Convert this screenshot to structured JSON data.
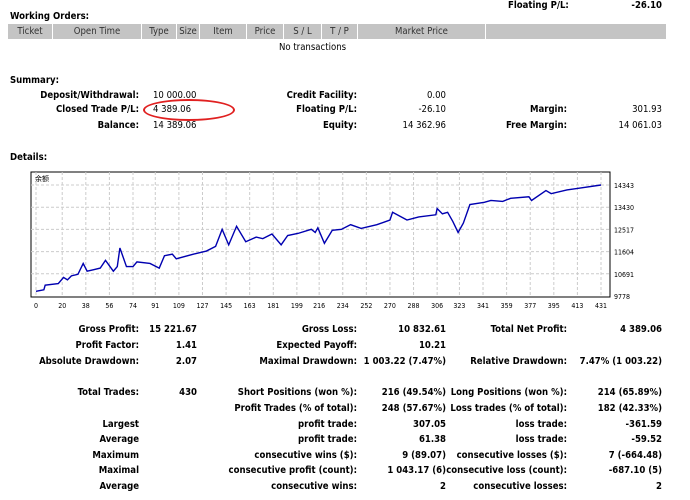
{
  "top_partial": {
    "label": "Floating P/L:",
    "value": "-26.10"
  },
  "working_orders": {
    "title": "Working Orders:",
    "columns": [
      "Ticket",
      "Open Time",
      "Type",
      "Size",
      "Item",
      "Price",
      "S / L",
      "T / P",
      "Market Price",
      ""
    ],
    "empty_text": "No transactions"
  },
  "summary": {
    "title": "Summary:",
    "rows": [
      [
        {
          "l": "Deposit/Withdrawal:",
          "v": "10 000.00"
        },
        {
          "l": "Credit Facility:",
          "v": "0.00"
        },
        {
          "l": "",
          "v": ""
        }
      ],
      [
        {
          "l": "Closed Trade P/L:",
          "v": "4 389.06"
        },
        {
          "l": "Floating P/L:",
          "v": "-26.10"
        },
        {
          "l": "Margin:",
          "v": "301.93"
        }
      ],
      [
        {
          "l": "Balance:",
          "v": "14 389.06"
        },
        {
          "l": "Equity:",
          "v": "14 362.96"
        },
        {
          "l": "Free Margin:",
          "v": "14 061.03"
        }
      ]
    ],
    "highlight_color": "#e02020"
  },
  "details": {
    "title": "Details:"
  },
  "chart_data": {
    "type": "line",
    "legend_label": "余额",
    "line_color": "#0000b0",
    "grid": true,
    "x_ticks": [
      0,
      20,
      38,
      56,
      74,
      91,
      109,
      127,
      145,
      163,
      181,
      199,
      216,
      234,
      252,
      270,
      288,
      306,
      323,
      341,
      359,
      377,
      395,
      413,
      431
    ],
    "y_ticks": [
      9778,
      10691,
      11604,
      12517,
      13430,
      14343
    ],
    "ylim": [
      9778,
      14343
    ],
    "xlim": [
      0,
      431
    ],
    "x": [
      0,
      6,
      7,
      17,
      21,
      24,
      27,
      32,
      36,
      39,
      44,
      49,
      53,
      59,
      62,
      64,
      69,
      74,
      77,
      87,
      94,
      98,
      104,
      107,
      120,
      130,
      137,
      142,
      147,
      153,
      160,
      168,
      173,
      180,
      187,
      192,
      200,
      210,
      213,
      215,
      220,
      226,
      233,
      240,
      248,
      260,
      270,
      272,
      283,
      292,
      305,
      306,
      310,
      314,
      318,
      322,
      326,
      331,
      342,
      347,
      356,
      362,
      376,
      378,
      389,
      393,
      405,
      415,
      431
    ],
    "y": [
      9969,
      10033,
      10224,
      10288,
      10543,
      10441,
      10607,
      10670,
      11117,
      10798,
      10862,
      10925,
      11244,
      10798,
      10989,
      11754,
      10989,
      10989,
      11180,
      11117,
      10925,
      11436,
      11499,
      11308,
      11499,
      11627,
      11818,
      12520,
      11882,
      12647,
      12009,
      12201,
      12137,
      12328,
      11882,
      12265,
      12354,
      12520,
      12392,
      12583,
      11946,
      12481,
      12520,
      12711,
      12558,
      12711,
      12902,
      13221,
      12902,
      13030,
      13119,
      13374,
      13157,
      13221,
      12839,
      12392,
      12775,
      13540,
      13630,
      13706,
      13668,
      13795,
      13859,
      13706,
      14114,
      13987,
      14140,
      14216,
      14343
    ]
  },
  "stats": {
    "rows": [
      [
        {
          "l": "Gross Profit:",
          "v": "15 221.67"
        },
        {
          "l": "Gross Loss:",
          "v": "10 832.61"
        },
        {
          "l": "Total Net Profit:",
          "v": "4 389.06"
        }
      ],
      [
        {
          "l": "Profit Factor:",
          "v": "1.41"
        },
        {
          "l": "Expected Payoff:",
          "v": "10.21"
        },
        {
          "l": "",
          "v": ""
        }
      ],
      [
        {
          "l": "Absolute Drawdown:",
          "v": "2.07"
        },
        {
          "l": "Maximal Drawdown:",
          "v": "1 003.22 (7.47%)"
        },
        {
          "l": "Relative Drawdown:",
          "v": "7.47% (1 003.22)"
        }
      ],
      [
        {
          "l": "Total Trades:",
          "v": "430"
        },
        {
          "l": "Short Positions (won %):",
          "v": "216 (49.54%)"
        },
        {
          "l": "Long Positions (won %):",
          "v": "214 (65.89%)"
        }
      ],
      [
        {
          "l": "",
          "v": ""
        },
        {
          "l": "Profit Trades (% of total):",
          "v": "248 (57.67%)"
        },
        {
          "l": "Loss trades (% of total):",
          "v": "182 (42.33%)"
        }
      ],
      [
        {
          "l": "Largest",
          "v": ""
        },
        {
          "l": "profit trade:",
          "v": "307.05"
        },
        {
          "l": "loss trade:",
          "v": "-361.59"
        }
      ],
      [
        {
          "l": "Average",
          "v": ""
        },
        {
          "l": "profit trade:",
          "v": "61.38"
        },
        {
          "l": "loss trade:",
          "v": "-59.52"
        }
      ],
      [
        {
          "l": "Maximum",
          "v": ""
        },
        {
          "l": "consecutive wins ($):",
          "v": "9 (89.07)"
        },
        {
          "l": "consecutive losses ($):",
          "v": "7 (-664.48)"
        }
      ],
      [
        {
          "l": "Maximal",
          "v": ""
        },
        {
          "l": "consecutive profit (count):",
          "v": "1 043.17 (6)"
        },
        {
          "l": "consecutive loss (count):",
          "v": "-687.10 (5)"
        }
      ],
      [
        {
          "l": "Average",
          "v": ""
        },
        {
          "l": "consecutive wins:",
          "v": "2"
        },
        {
          "l": "consecutive losses:",
          "v": "2"
        }
      ]
    ]
  }
}
